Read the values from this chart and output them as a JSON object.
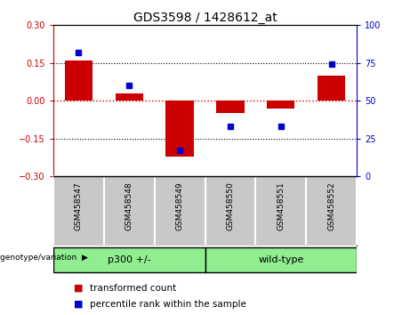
{
  "title": "GDS3598 / 1428612_at",
  "samples": [
    "GSM458547",
    "GSM458548",
    "GSM458549",
    "GSM458550",
    "GSM458551",
    "GSM458552"
  ],
  "transformed_counts": [
    0.16,
    0.03,
    -0.22,
    -0.05,
    -0.03,
    0.1
  ],
  "percentile_ranks": [
    82,
    60,
    17,
    33,
    33,
    74
  ],
  "group_boundary": 3,
  "group_labels": [
    "p300 +/-",
    "wild-type"
  ],
  "group_color": "#90ee90",
  "bar_color": "#cc0000",
  "dot_color": "#0000cc",
  "left_ylim": [
    -0.3,
    0.3
  ],
  "right_ylim": [
    0,
    100
  ],
  "left_yticks": [
    -0.3,
    -0.15,
    0,
    0.15,
    0.3
  ],
  "right_yticks": [
    0,
    25,
    50,
    75,
    100
  ],
  "hline_color": "#cc0000",
  "dotted_lines": [
    -0.15,
    0.15
  ],
  "bar_width": 0.55,
  "background_color": "#ffffff",
  "label_box_color": "#c8c8c8",
  "legend_items": [
    "transformed count",
    "percentile rank within the sample"
  ],
  "genotype_label": "genotype/variation",
  "left_axis_color": "#cc0000",
  "right_axis_color": "#0000cc",
  "title_fontsize": 10,
  "tick_fontsize": 7,
  "label_fontsize": 6.5,
  "legend_fontsize": 7.5,
  "group_fontsize": 8
}
